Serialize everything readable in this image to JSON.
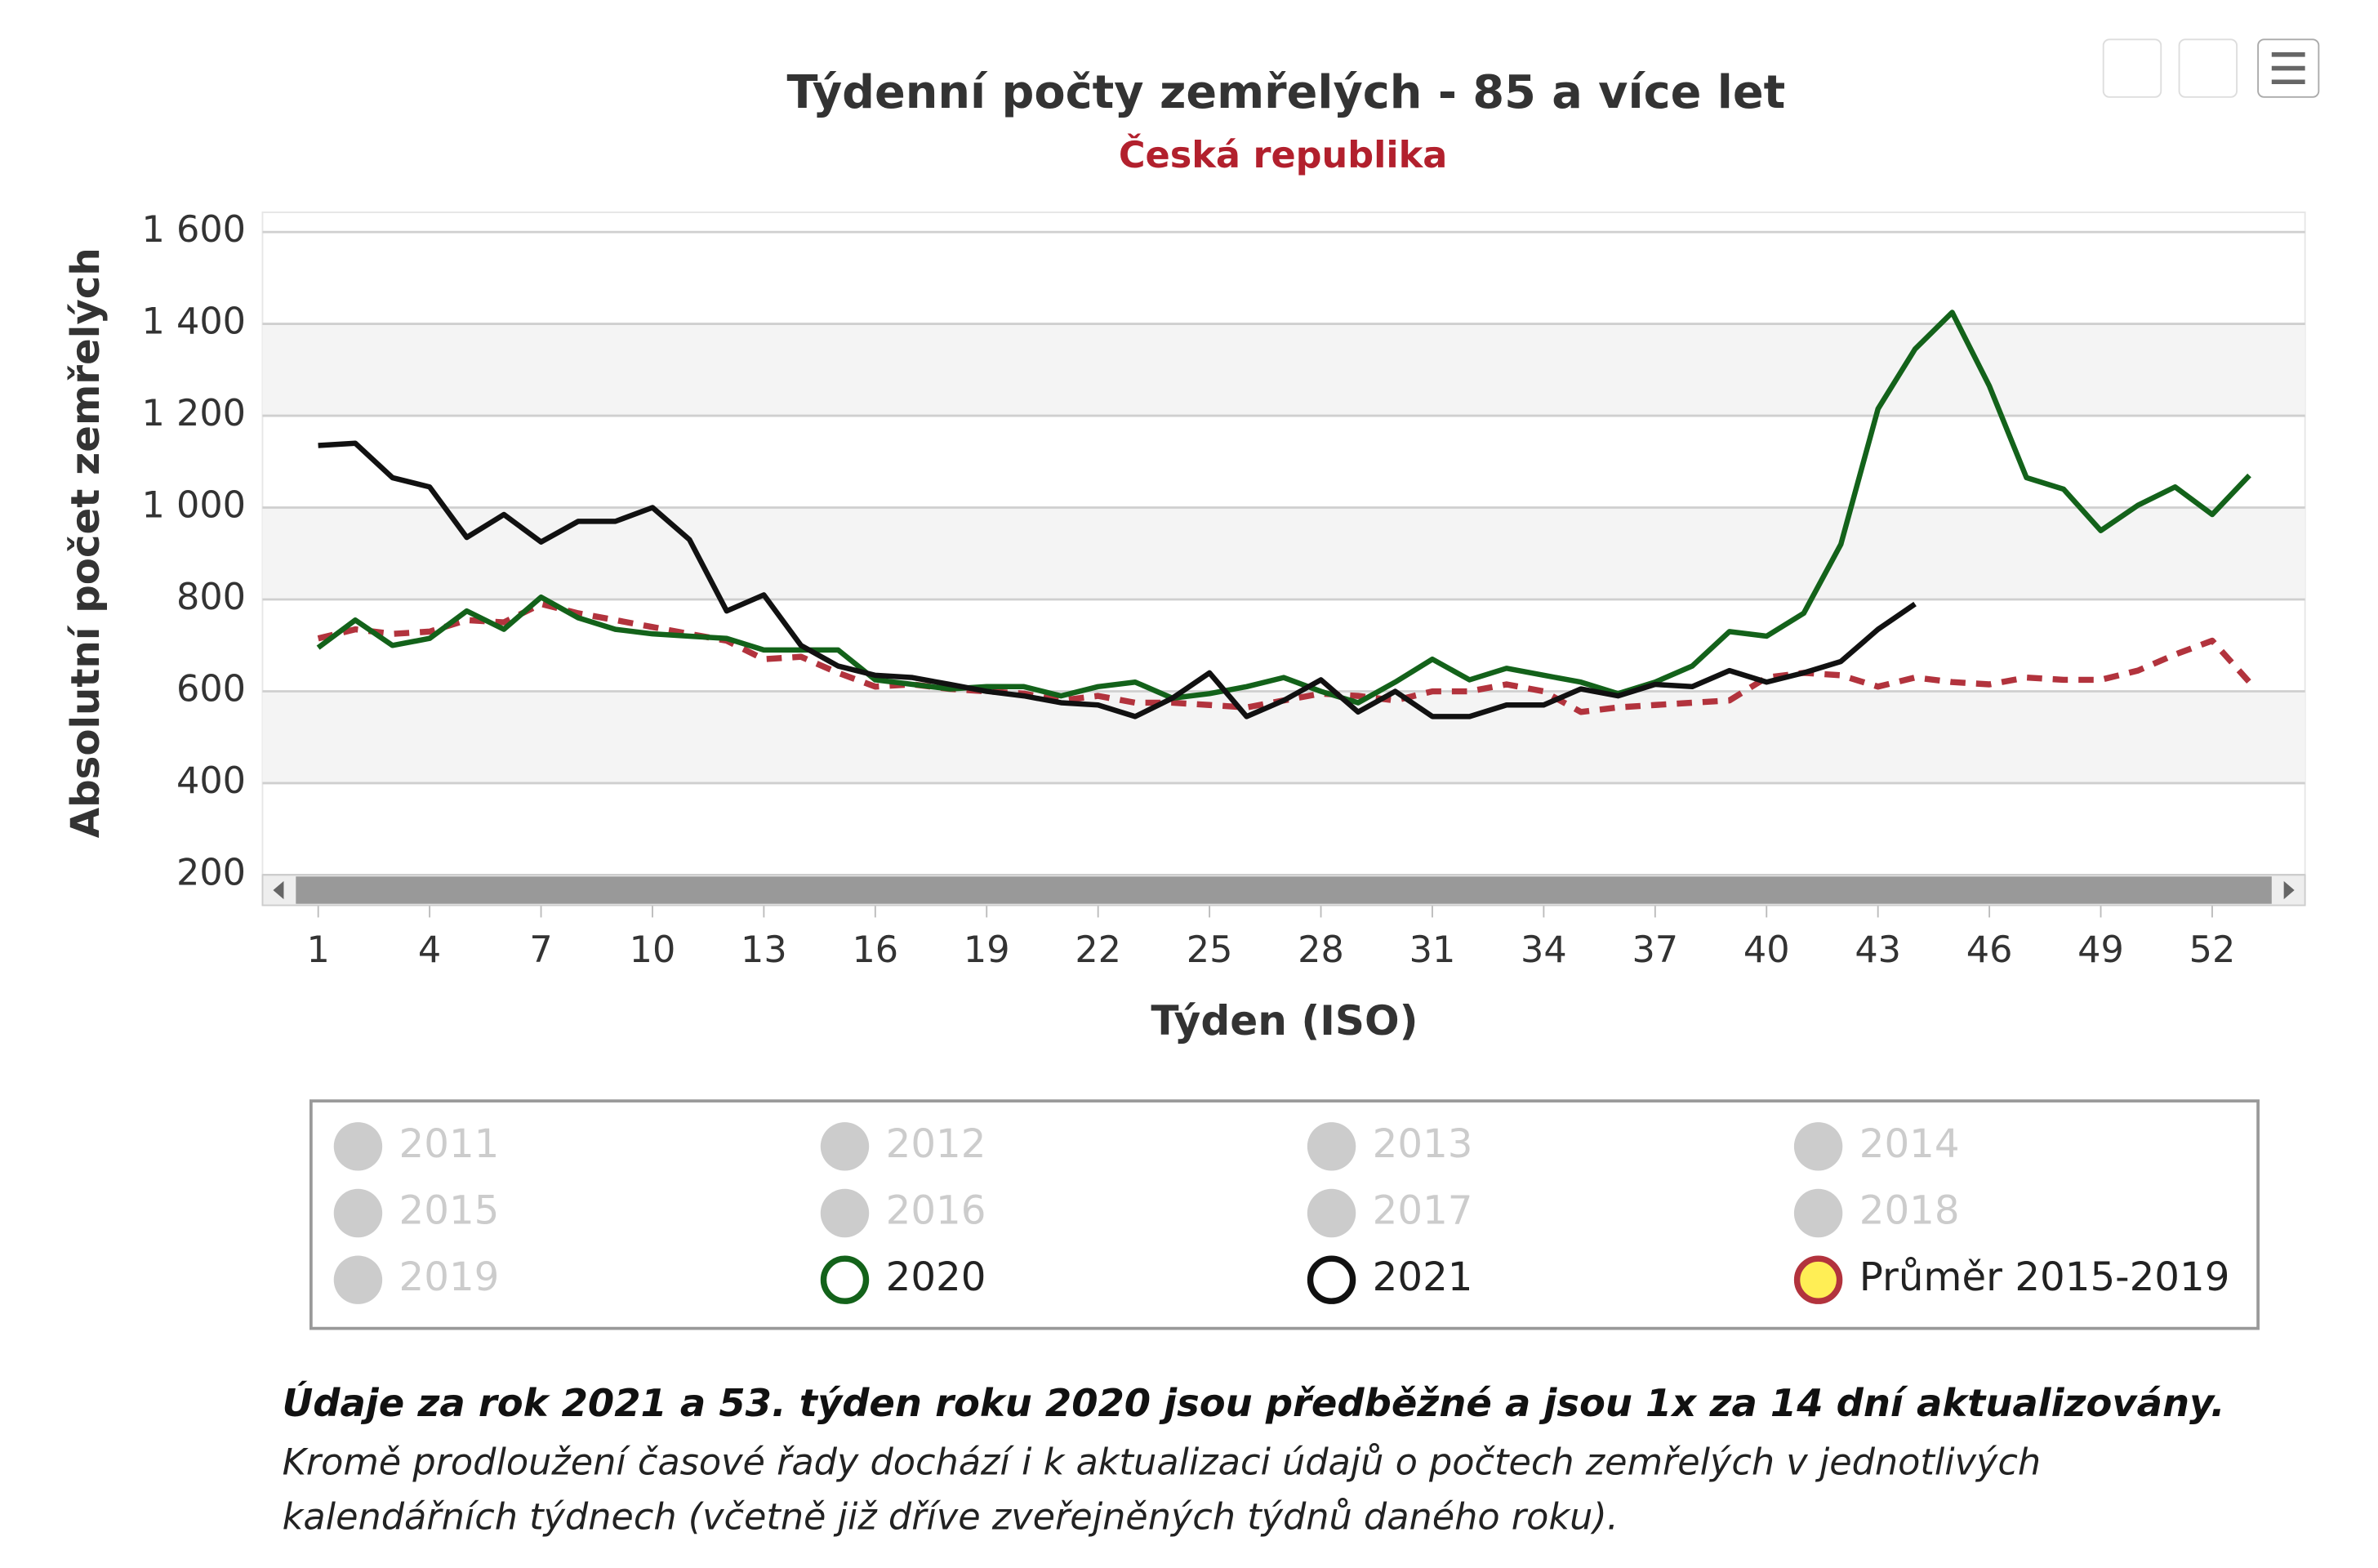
{
  "chart_data": {
    "type": "line",
    "title": "Týdenní počty zemřelých - 85 a více let",
    "subtitle": "Česká republika",
    "x_label": "Týden (ISO)",
    "y_label": "Absolutní počet zemřelých",
    "x": [
      1,
      2,
      3,
      4,
      5,
      6,
      7,
      8,
      9,
      10,
      11,
      12,
      13,
      14,
      15,
      16,
      17,
      18,
      19,
      20,
      21,
      22,
      23,
      24,
      25,
      26,
      27,
      28,
      29,
      30,
      31,
      32,
      33,
      34,
      35,
      36,
      37,
      38,
      39,
      40,
      41,
      42,
      43,
      44,
      45,
      46,
      47,
      48,
      49,
      50,
      51,
      52,
      53
    ],
    "xlim": [
      -0.5,
      54.5
    ],
    "xticks": [
      1,
      4,
      7,
      10,
      13,
      16,
      19,
      22,
      25,
      28,
      31,
      34,
      37,
      40,
      43,
      46,
      49,
      52
    ],
    "ylim": [
      200,
      1600
    ],
    "yticks": [
      {
        "value": 200,
        "label": "200"
      },
      {
        "value": 400,
        "label": "400"
      },
      {
        "value": 600,
        "label": "600"
      },
      {
        "value": 800,
        "label": "800"
      },
      {
        "value": 1000,
        "label": "1 000"
      },
      {
        "value": 1200,
        "label": "1 200"
      },
      {
        "value": 1400,
        "label": "1 400"
      },
      {
        "value": 1600,
        "label": "1 600"
      }
    ],
    "grid": true,
    "series": [
      {
        "name": "2020",
        "color": "#13621a",
        "dashed": false,
        "values": [
          695,
          755,
          700,
          715,
          775,
          735,
          805,
          760,
          735,
          725,
          720,
          715,
          690,
          690,
          690,
          625,
          615,
          605,
          610,
          610,
          590,
          610,
          620,
          585,
          595,
          610,
          630,
          600,
          575,
          620,
          670,
          625,
          650,
          635,
          620,
          595,
          620,
          655,
          730,
          720,
          770,
          920,
          1215,
          1345,
          1425,
          1265,
          1065,
          1040,
          950,
          1005,
          1045,
          985,
          1070
        ]
      },
      {
        "name": "2021",
        "color": "#111111",
        "dashed": false,
        "values": [
          1135,
          1140,
          1065,
          1045,
          935,
          985,
          925,
          970,
          970,
          1000,
          930,
          775,
          810,
          700,
          655,
          635,
          630,
          615,
          600,
          590,
          575,
          570,
          545,
          585,
          640,
          545,
          580,
          625,
          555,
          600,
          545,
          545,
          570,
          570,
          605,
          590,
          615,
          610,
          645,
          620,
          640,
          665,
          735,
          790,
          null,
          null,
          null,
          null,
          null,
          null,
          null,
          null,
          null
        ]
      },
      {
        "name": "Průměr 2015-2019",
        "color": "#b2333d",
        "dashed": true,
        "values": [
          715,
          735,
          725,
          730,
          755,
          750,
          790,
          770,
          755,
          740,
          725,
          710,
          670,
          675,
          640,
          610,
          615,
          605,
          600,
          595,
          580,
          590,
          575,
          575,
          570,
          565,
          580,
          595,
          590,
          580,
          600,
          600,
          615,
          600,
          555,
          565,
          570,
          575,
          580,
          630,
          640,
          635,
          610,
          630,
          620,
          615,
          630,
          625,
          625,
          645,
          680,
          710,
          620
        ]
      }
    ],
    "legend_disabled": [
      "2011",
      "2012",
      "2013",
      "2014",
      "2015",
      "2016",
      "2017",
      "2018",
      "2019"
    ],
    "note_bold": "Údaje za rok 2021 a 53. týden roku 2020 jsou předběžné a jsou 1x za 14 dní aktualizovány.",
    "note_lines": [
      "Kromě prodloužení časové řady dochází i k aktualizaci údajů o počtech zemřelých v jednotlivých",
      "kalendářních týdnech (včetně již dříve zveřejněných týdnů daného roku)."
    ]
  }
}
